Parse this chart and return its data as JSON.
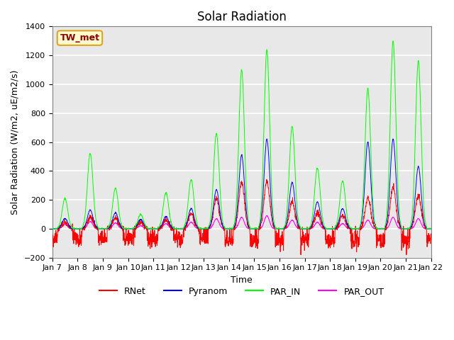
{
  "title": "Solar Radiation",
  "ylabel": "Solar Radiation (W/m2, uE/m2/s)",
  "xlabel": "Time",
  "ylim": [
    -200,
    1400
  ],
  "yticks": [
    -200,
    0,
    200,
    400,
    600,
    800,
    1000,
    1200,
    1400
  ],
  "station_label": "TW_met",
  "station_label_color": "#8B0000",
  "station_label_bg": "#FFFACD",
  "station_label_border": "#DAA520",
  "background_color": "#E8E8E8",
  "grid_color": "white",
  "n_days": 15,
  "n_pts_per_day": 144,
  "seed": 42,
  "par_in_peaks": [
    210,
    520,
    280,
    100,
    250,
    340,
    660,
    1100,
    1240,
    710,
    420,
    330,
    970,
    1300,
    1165
  ],
  "pyranom_peaks": [
    70,
    130,
    110,
    65,
    85,
    140,
    270,
    510,
    620,
    320,
    185,
    140,
    600,
    620,
    430
  ],
  "rnet_day_peaks": [
    45,
    85,
    75,
    42,
    62,
    105,
    210,
    320,
    330,
    185,
    105,
    95,
    210,
    290,
    230
  ],
  "rnet_night_level": -70,
  "par_out_peaks": [
    30,
    50,
    40,
    20,
    35,
    45,
    70,
    80,
    90,
    60,
    45,
    35,
    60,
    80,
    70
  ],
  "xtick_labels": [
    "Jan 7",
    "Jan 8",
    "Jan 9",
    "Jan 10",
    "Jan 11",
    "Jan 12",
    "Jan 13",
    "Jan 14",
    "Jan 15",
    "Jan 16",
    "Jan 17",
    "Jan 18",
    "Jan 19",
    "Jan 20",
    "Jan 21",
    "Jan 22"
  ],
  "title_fontsize": 12,
  "axis_label_fontsize": 9,
  "tick_fontsize": 8
}
